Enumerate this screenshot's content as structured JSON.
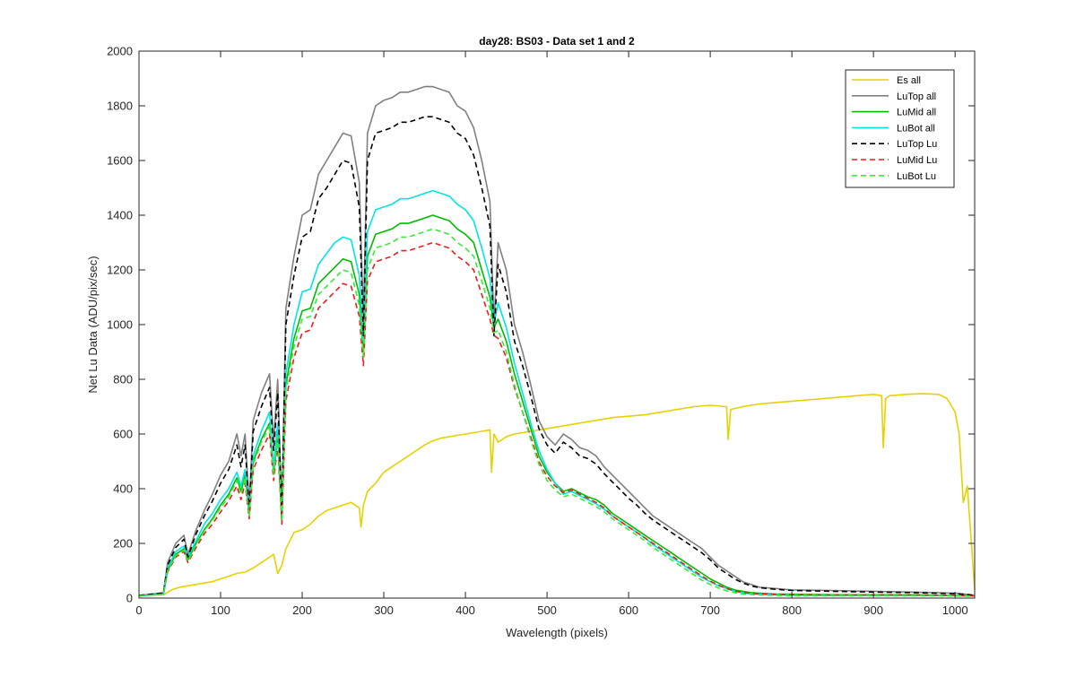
{
  "chart_data": {
    "type": "line",
    "title": "day28: BS03 - Data set 1 and 2",
    "xlabel": "Wavelength (pixels)",
    "ylabel": "Net Lu Data (ADU/pix/sec)",
    "xlim": [
      0,
      1024
    ],
    "ylim": [
      0,
      2000
    ],
    "xticks": [
      0,
      100,
      200,
      300,
      400,
      500,
      600,
      700,
      800,
      900,
      1000
    ],
    "yticks": [
      0,
      200,
      400,
      600,
      800,
      1000,
      1200,
      1400,
      1600,
      1800,
      2000
    ],
    "grid": false,
    "legend_position": "top-right",
    "base_x": [
      0,
      30,
      35,
      45,
      55,
      60,
      70,
      80,
      90,
      100,
      110,
      120,
      125,
      130,
      135,
      140,
      150,
      160,
      165,
      170,
      175,
      180,
      190,
      200,
      210,
      220,
      230,
      240,
      250,
      260,
      270,
      275,
      280,
      290,
      300,
      310,
      320,
      330,
      340,
      350,
      360,
      370,
      380,
      390,
      400,
      410,
      420,
      430,
      435,
      440,
      450,
      460,
      470,
      480,
      490,
      500,
      510,
      520,
      530,
      540,
      550,
      560,
      570,
      580,
      590,
      600,
      610,
      620,
      630,
      640,
      650,
      660,
      670,
      680,
      690,
      700,
      710,
      720,
      730,
      740,
      750,
      760,
      780,
      800,
      850,
      900,
      950,
      1000,
      1010,
      1020,
      1024
    ],
    "series": [
      {
        "name": "Es  all",
        "color": "#e6d200",
        "dash": "solid",
        "x": [
          0,
          30,
          40,
          50,
          60,
          70,
          80,
          90,
          100,
          110,
          120,
          130,
          140,
          150,
          160,
          165,
          170,
          175,
          180,
          190,
          200,
          210,
          220,
          230,
          240,
          250,
          260,
          270,
          272,
          275,
          280,
          290,
          300,
          310,
          320,
          330,
          340,
          350,
          360,
          370,
          380,
          390,
          400,
          410,
          420,
          430,
          432,
          435,
          440,
          450,
          460,
          480,
          500,
          520,
          540,
          560,
          580,
          600,
          620,
          640,
          660,
          680,
          700,
          720,
          722,
          725,
          740,
          760,
          780,
          800,
          820,
          840,
          860,
          880,
          900,
          910,
          912,
          915,
          920,
          940,
          960,
          980,
          990,
          1000,
          1005,
          1010,
          1015,
          1020,
          1024
        ],
        "values": [
          10,
          12,
          30,
          40,
          45,
          50,
          55,
          60,
          70,
          80,
          90,
          95,
          110,
          130,
          150,
          160,
          90,
          120,
          180,
          240,
          250,
          270,
          300,
          320,
          330,
          340,
          350,
          330,
          260,
          340,
          390,
          420,
          460,
          480,
          500,
          520,
          540,
          560,
          575,
          585,
          590,
          595,
          600,
          605,
          610,
          615,
          460,
          600,
          570,
          590,
          600,
          610,
          620,
          630,
          640,
          650,
          660,
          665,
          670,
          680,
          690,
          700,
          705,
          700,
          580,
          690,
          700,
          710,
          715,
          720,
          725,
          730,
          735,
          740,
          745,
          740,
          550,
          730,
          740,
          745,
          748,
          745,
          730,
          680,
          600,
          350,
          410,
          200,
          30
        ]
      },
      {
        "name": "LuTop  all",
        "color": "#808080",
        "dash": "solid",
        "values": [
          10,
          20,
          130,
          200,
          230,
          160,
          250,
          320,
          380,
          450,
          500,
          600,
          520,
          600,
          340,
          650,
          750,
          820,
          570,
          800,
          310,
          1060,
          1250,
          1400,
          1420,
          1550,
          1600,
          1650,
          1700,
          1690,
          1520,
          1020,
          1700,
          1800,
          1820,
          1830,
          1850,
          1850,
          1860,
          1870,
          1870,
          1860,
          1850,
          1800,
          1780,
          1720,
          1600,
          1450,
          1000,
          1300,
          1200,
          1000,
          900,
          780,
          650,
          590,
          560,
          600,
          580,
          550,
          540,
          520,
          480,
          450,
          420,
          390,
          360,
          330,
          300,
          280,
          260,
          240,
          220,
          200,
          180,
          150,
          120,
          100,
          80,
          60,
          50,
          40,
          35,
          30,
          28,
          25,
          22,
          18,
          15,
          12,
          10
        ]
      },
      {
        "name": "LuMid  all",
        "color": "#00bb00",
        "dash": "solid",
        "values": [
          8,
          15,
          100,
          160,
          180,
          140,
          200,
          250,
          290,
          340,
          380,
          440,
          390,
          450,
          310,
          500,
          580,
          640,
          460,
          600,
          280,
          780,
          950,
          1050,
          1060,
          1150,
          1180,
          1210,
          1240,
          1230,
          1110,
          900,
          1250,
          1330,
          1340,
          1350,
          1370,
          1370,
          1380,
          1390,
          1400,
          1390,
          1380,
          1350,
          1330,
          1300,
          1200,
          1100,
          990,
          1020,
          940,
          820,
          720,
          620,
          520,
          460,
          420,
          390,
          400,
          385,
          370,
          360,
          340,
          310,
          290,
          270,
          250,
          230,
          210,
          190,
          170,
          150,
          130,
          110,
          90,
          70,
          55,
          40,
          30,
          25,
          20,
          18,
          15,
          14,
          12,
          12,
          12,
          10,
          10,
          8,
          8
        ]
      },
      {
        "name": "LuBot  all",
        "color": "#00e5e5",
        "dash": "solid",
        "values": [
          8,
          15,
          110,
          170,
          190,
          150,
          210,
          270,
          310,
          360,
          400,
          460,
          410,
          470,
          320,
          520,
          610,
          680,
          480,
          640,
          290,
          820,
          1000,
          1120,
          1130,
          1220,
          1260,
          1300,
          1320,
          1310,
          1180,
          940,
          1340,
          1420,
          1430,
          1440,
          1460,
          1460,
          1470,
          1480,
          1490,
          1480,
          1470,
          1440,
          1420,
          1380,
          1280,
          1170,
          1000,
          1080,
          990,
          860,
          750,
          640,
          540,
          470,
          420,
          380,
          390,
          375,
          360,
          345,
          325,
          300,
          280,
          260,
          240,
          220,
          195,
          175,
          155,
          135,
          115,
          95,
          75,
          60,
          45,
          35,
          25,
          20,
          16,
          14,
          12,
          11,
          10,
          10,
          10,
          9,
          8,
          8,
          8
        ]
      },
      {
        "name": "LuTop  Lu",
        "color": "#000000",
        "dash": "dashed",
        "values": [
          10,
          18,
          120,
          185,
          215,
          150,
          235,
          300,
          355,
          420,
          470,
          560,
          480,
          560,
          320,
          610,
          700,
          770,
          540,
          750,
          300,
          1000,
          1180,
          1320,
          1340,
          1460,
          1500,
          1550,
          1600,
          1590,
          1430,
          960,
          1600,
          1700,
          1710,
          1720,
          1740,
          1740,
          1750,
          1760,
          1760,
          1750,
          1740,
          1700,
          1680,
          1620,
          1500,
          1360,
          960,
          1220,
          1120,
          940,
          850,
          740,
          620,
          560,
          530,
          570,
          550,
          520,
          510,
          490,
          455,
          425,
          395,
          365,
          340,
          310,
          285,
          265,
          245,
          225,
          205,
          185,
          165,
          140,
          110,
          90,
          70,
          55,
          45,
          38,
          32,
          28,
          25,
          22,
          20,
          16,
          14,
          11,
          9
        ]
      },
      {
        "name": "LuMid  Lu",
        "color": "#ee1c1c",
        "dash": "dashed",
        "values": [
          8,
          14,
          95,
          150,
          170,
          130,
          185,
          235,
          270,
          315,
          355,
          410,
          360,
          420,
          290,
          470,
          540,
          600,
          430,
          560,
          270,
          720,
          880,
          970,
          980,
          1060,
          1090,
          1120,
          1150,
          1140,
          1030,
          850,
          1160,
          1230,
          1240,
          1250,
          1270,
          1270,
          1280,
          1290,
          1300,
          1290,
          1280,
          1250,
          1230,
          1200,
          1110,
          1020,
          960,
          950,
          880,
          770,
          680,
          590,
          500,
          445,
          410,
          385,
          395,
          380,
          365,
          350,
          330,
          300,
          280,
          260,
          240,
          220,
          200,
          180,
          160,
          140,
          120,
          100,
          80,
          62,
          48,
          35,
          26,
          20,
          17,
          15,
          13,
          12,
          11,
          11,
          11,
          10,
          9,
          8,
          8
        ]
      },
      {
        "name": "LuBot  Lu",
        "color": "#33ee33",
        "dash": "dashed",
        "values": [
          8,
          14,
          100,
          155,
          175,
          135,
          195,
          245,
          285,
          330,
          370,
          430,
          380,
          440,
          300,
          490,
          570,
          630,
          450,
          590,
          280,
          760,
          920,
          1020,
          1030,
          1110,
          1140,
          1170,
          1200,
          1190,
          1070,
          880,
          1200,
          1280,
          1290,
          1300,
          1320,
          1320,
          1330,
          1340,
          1350,
          1340,
          1330,
          1300,
          1280,
          1250,
          1160,
          1060,
          970,
          980,
          900,
          780,
          680,
          580,
          490,
          430,
          395,
          370,
          380,
          365,
          350,
          335,
          315,
          290,
          270,
          250,
          230,
          210,
          185,
          165,
          145,
          125,
          105,
          85,
          65,
          50,
          37,
          27,
          20,
          15,
          13,
          11,
          10,
          9,
          9,
          9,
          9,
          8,
          7,
          7,
          7
        ]
      }
    ]
  }
}
